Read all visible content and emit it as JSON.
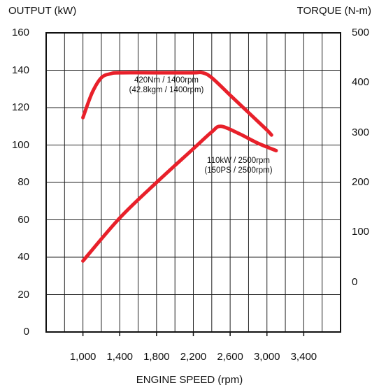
{
  "chart_data": {
    "type": "line",
    "title": "",
    "xlabel": "ENGINE SPEED (rpm)",
    "ylabel_left": "OUTPUT (kW)",
    "ylabel_right": "TORQUE (N-m)",
    "x_ticks": [
      "1,000",
      "1,400",
      "1,800",
      "2,200",
      "2,600",
      "3,000",
      "3,400"
    ],
    "y_left_ticks": [
      "0",
      "20",
      "40",
      "60",
      "80",
      "100",
      "120",
      "140",
      "160"
    ],
    "y_right_ticks": [
      "0",
      "100",
      "200",
      "300",
      "400",
      "500"
    ],
    "xlim": [
      600,
      3800
    ],
    "ylim_left": [
      0,
      160
    ],
    "ylim_right": [
      -100,
      500
    ],
    "grid": true,
    "series": [
      {
        "axis": "right",
        "color": "#e8202a",
        "points": [
          [
            1000,
            330
          ],
          [
            1100,
            380
          ],
          [
            1200,
            410
          ],
          [
            1300,
            418
          ],
          [
            1400,
            420
          ],
          [
            1800,
            420
          ],
          [
            2200,
            420
          ],
          [
            2300,
            420
          ],
          [
            2400,
            410
          ],
          [
            2600,
            375
          ],
          [
            2800,
            340
          ],
          [
            3000,
            305
          ],
          [
            3050,
            295
          ]
        ]
      },
      {
        "axis": "left",
        "color": "#e8202a",
        "points": [
          [
            1000,
            38
          ],
          [
            1400,
            61
          ],
          [
            1800,
            80
          ],
          [
            2200,
            98
          ],
          [
            2400,
            107
          ],
          [
            2500,
            110
          ],
          [
            2700,
            106
          ],
          [
            2900,
            101
          ],
          [
            3100,
            97
          ]
        ]
      }
    ],
    "annotations": [
      {
        "lines": [
          "420Nm / 1400rpm",
          "(42.8kgm / 1400rpm)"
        ]
      },
      {
        "lines": [
          "110kW / 2500rpm",
          "(150PS / 2500rpm)"
        ]
      }
    ]
  }
}
